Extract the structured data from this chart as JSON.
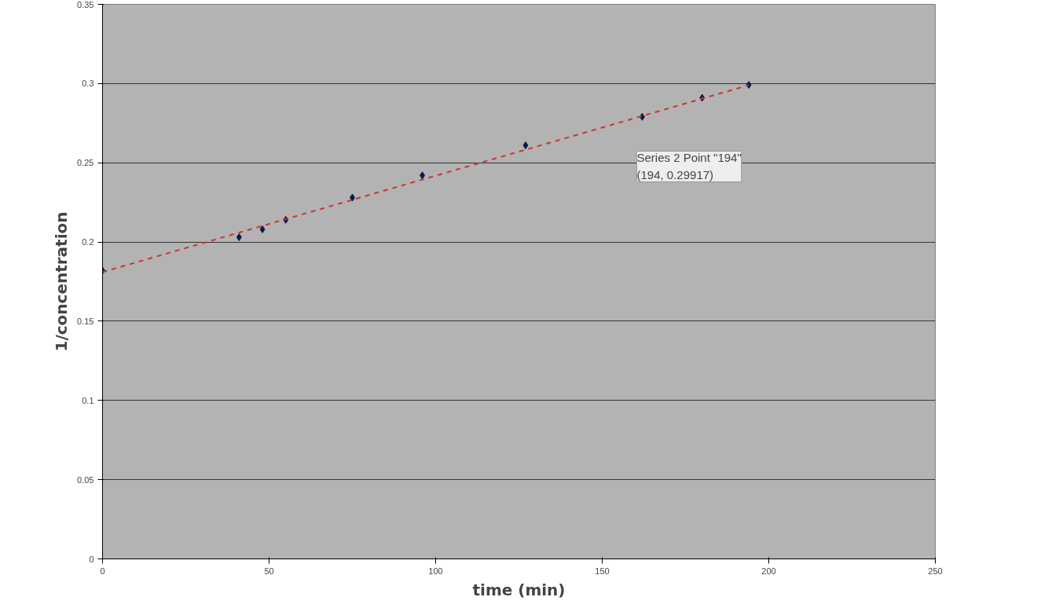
{
  "chart_data": {
    "type": "scatter",
    "xlabel": "time (min)",
    "ylabel": "1/concentration",
    "xlim": [
      0,
      250
    ],
    "xticks": [
      0,
      50,
      100,
      150,
      200,
      250
    ],
    "ylim": [
      0,
      0.35
    ],
    "yticks": [
      0,
      0.05,
      0.1,
      0.15,
      0.2,
      0.25,
      0.3,
      0.35
    ],
    "grid": "y",
    "marker": "diamond",
    "annotations": [
      "Series 2 Point \"194\"\n(194, 0.29917)"
    ],
    "series": [
      {
        "color": "#0d1a4d",
        "x": [
          0,
          41,
          48,
          55,
          75,
          96,
          127,
          162,
          180,
          194
        ],
        "values": [
          0.182,
          0.203,
          0.208,
          0.214,
          0.228,
          0.242,
          0.261,
          0.279,
          0.291,
          0.29917
        ]
      },
      {
        "type": "line",
        "color": "#cc3333",
        "line_style": "dashed",
        "marker": "none",
        "x": [
          0,
          194
        ],
        "values": [
          0.181,
          0.299
        ]
      }
    ]
  }
}
